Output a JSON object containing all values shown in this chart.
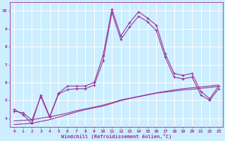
{
  "background_color": "#cceeff",
  "grid_color": "#ffffff",
  "line_color": "#993399",
  "xlabel": "Windchill (Refroidissement éolien,°C)",
  "xlim": [
    -0.5,
    23.5
  ],
  "ylim": [
    3.5,
    10.5
  ],
  "yticks": [
    4,
    5,
    6,
    7,
    8,
    9,
    10
  ],
  "xticks": [
    0,
    1,
    2,
    3,
    4,
    5,
    6,
    7,
    8,
    9,
    10,
    11,
    12,
    13,
    14,
    15,
    16,
    17,
    18,
    19,
    20,
    21,
    22,
    23
  ],
  "line1_x": [
    0,
    1,
    2,
    3,
    4,
    5,
    6,
    7,
    8,
    9,
    10,
    11,
    12,
    13,
    14,
    15,
    16,
    17,
    18,
    19,
    20,
    21,
    22,
    23
  ],
  "line1_y": [
    4.5,
    4.2,
    3.7,
    5.3,
    4.1,
    5.4,
    5.8,
    5.8,
    5.8,
    6.0,
    7.5,
    10.1,
    8.6,
    9.35,
    9.95,
    9.6,
    9.2,
    7.6,
    6.5,
    6.4,
    6.5,
    5.5,
    5.1,
    5.8
  ],
  "line2_x": [
    0,
    1,
    2,
    3,
    4,
    5,
    6,
    7,
    8,
    9,
    10,
    11,
    12,
    13,
    14,
    15,
    16,
    17,
    18,
    19,
    20,
    21,
    22,
    23
  ],
  "line2_y": [
    3.85,
    3.88,
    3.92,
    4.0,
    4.08,
    4.18,
    4.28,
    4.42,
    4.52,
    4.62,
    4.73,
    4.87,
    5.02,
    5.12,
    5.22,
    5.32,
    5.42,
    5.5,
    5.58,
    5.65,
    5.7,
    5.75,
    5.8,
    5.85
  ],
  "line3_x": [
    0,
    1,
    2,
    3,
    4,
    5,
    6,
    7,
    8,
    9,
    10,
    11,
    12,
    13,
    14,
    15,
    16,
    17,
    18,
    19,
    20,
    21,
    22,
    23
  ],
  "line3_y": [
    3.65,
    3.68,
    3.72,
    3.82,
    3.92,
    4.06,
    4.2,
    4.35,
    4.48,
    4.58,
    4.68,
    4.83,
    4.98,
    5.1,
    5.2,
    5.3,
    5.4,
    5.46,
    5.52,
    5.58,
    5.62,
    5.67,
    5.72,
    5.78
  ],
  "line4_x": [
    0,
    1,
    2,
    3,
    4,
    5,
    6,
    7,
    8,
    9,
    10,
    11,
    12,
    13,
    14,
    15,
    16,
    17,
    18,
    19,
    20,
    21,
    22,
    23
  ],
  "line4_y": [
    4.4,
    4.3,
    3.9,
    5.2,
    4.05,
    5.35,
    5.6,
    5.65,
    5.65,
    5.85,
    7.2,
    9.9,
    8.4,
    9.1,
    9.7,
    9.4,
    8.9,
    7.4,
    6.3,
    6.2,
    6.3,
    5.3,
    5.0,
    5.65
  ],
  "tick_fontsize": 4.5,
  "xlabel_fontsize": 5.0
}
